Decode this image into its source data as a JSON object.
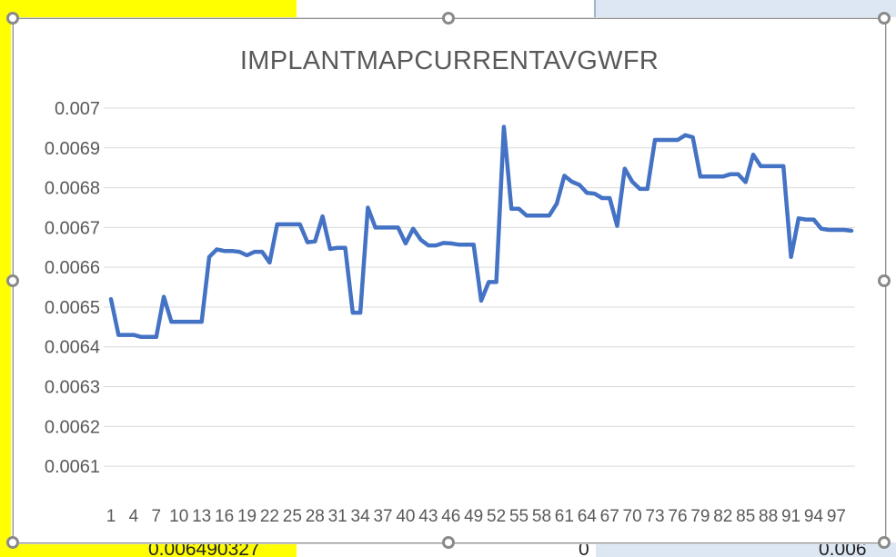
{
  "spreadsheet": {
    "peek_left_value": "0.006490327",
    "peek_middle_value": "0",
    "peek_right_value": "0.006"
  },
  "chart_data": {
    "type": "line",
    "title": "IMPLANTMAPCURRENTAVGWFR",
    "xlabel": "",
    "ylabel": "",
    "ylim": [
      0.006,
      0.007
    ],
    "yticks": [
      "0.0061",
      "0.0062",
      "0.0063",
      "0.0064",
      "0.0065",
      "0.0066",
      "0.0067",
      "0.0068",
      "0.0069",
      "0.007"
    ],
    "xtick_labels": [
      "1",
      "4",
      "7",
      "10",
      "13",
      "16",
      "19",
      "22",
      "25",
      "28",
      "31",
      "34",
      "37",
      "40",
      "43",
      "46",
      "49",
      "52",
      "55",
      "58",
      "61",
      "64",
      "67",
      "70",
      "73",
      "76",
      "79",
      "82",
      "85",
      "88",
      "91",
      "94",
      "97"
    ],
    "grid": true,
    "legend": "none",
    "series_color": "#4472c4",
    "categories": [
      1,
      2,
      3,
      4,
      5,
      6,
      7,
      8,
      9,
      10,
      11,
      12,
      13,
      14,
      15,
      16,
      17,
      18,
      19,
      20,
      21,
      22,
      23,
      24,
      25,
      26,
      27,
      28,
      29,
      30,
      31,
      32,
      33,
      34,
      35,
      36,
      37,
      38,
      39,
      40,
      41,
      42,
      43,
      44,
      45,
      46,
      47,
      48,
      49,
      50,
      51,
      52,
      53,
      54,
      55,
      56,
      57,
      58,
      59,
      60,
      61,
      62,
      63,
      64,
      65,
      66,
      67,
      68,
      69,
      70,
      71,
      72,
      73,
      74,
      75,
      76,
      77,
      78,
      79,
      80,
      81,
      82,
      83,
      84,
      85,
      86,
      87,
      88,
      89,
      90,
      91,
      92,
      93,
      94,
      95,
      96,
      97,
      98,
      99
    ],
    "values": [
      0.00652,
      0.00643,
      0.00643,
      0.00643,
      0.006425,
      0.006425,
      0.006425,
      0.006526,
      0.006463,
      0.006463,
      0.006463,
      0.006463,
      0.006463,
      0.006626,
      0.006645,
      0.006641,
      0.006641,
      0.006639,
      0.00663,
      0.006639,
      0.006639,
      0.006612,
      0.006708,
      0.006708,
      0.006708,
      0.006708,
      0.006663,
      0.006665,
      0.006728,
      0.006646,
      0.006649,
      0.006649,
      0.006486,
      0.006486,
      0.00675,
      0.0067,
      0.0067,
      0.0067,
      0.0067,
      0.00666,
      0.006697,
      0.006669,
      0.006655,
      0.006655,
      0.006661,
      0.00666,
      0.006657,
      0.006657,
      0.006657,
      0.006516,
      0.006563,
      0.006563,
      0.006953,
      0.006747,
      0.006747,
      0.00673,
      0.00673,
      0.00673,
      0.00673,
      0.00676,
      0.00683,
      0.006815,
      0.006807,
      0.006787,
      0.006785,
      0.006774,
      0.006774,
      0.006704,
      0.006848,
      0.006815,
      0.006797,
      0.006797,
      0.00692,
      0.00692,
      0.00692,
      0.00692,
      0.006932,
      0.006927,
      0.006828,
      0.006828,
      0.006828,
      0.006828,
      0.006834,
      0.006834,
      0.006814,
      0.006883,
      0.006854,
      0.006854,
      0.006854,
      0.006854,
      0.006626,
      0.006723,
      0.00672,
      0.00672,
      0.006697,
      0.006694,
      0.006694,
      0.006694,
      0.006692
    ]
  }
}
